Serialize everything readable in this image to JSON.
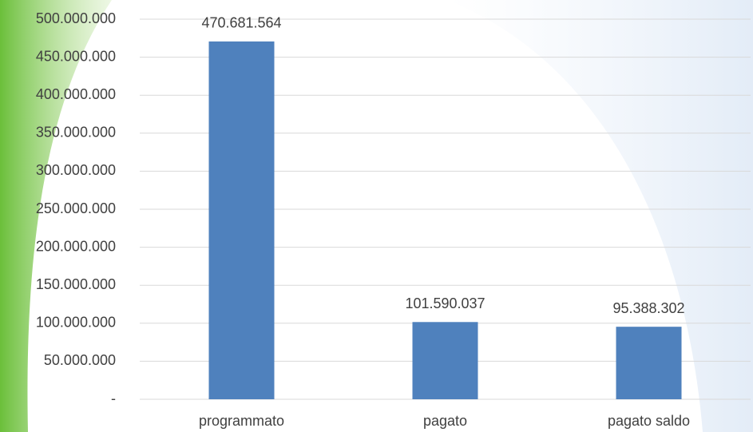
{
  "chart_data": {
    "type": "bar",
    "categories": [
      "programmato",
      "pagato",
      "pagato saldo"
    ],
    "values": [
      470681564,
      101590037,
      95388302
    ],
    "value_labels": [
      "470.681.564",
      "101.590.037",
      "95.388.302"
    ],
    "color": "#4f81bd",
    "ylim": [
      0,
      500000000
    ],
    "yticks": [
      {
        "value": 0,
        "label": "-"
      },
      {
        "value": 50000000,
        "label": "50.000.000"
      },
      {
        "value": 100000000,
        "label": "100.000.000"
      },
      {
        "value": 150000000,
        "label": "150.000.000"
      },
      {
        "value": 200000000,
        "label": "200.000.000"
      },
      {
        "value": 250000000,
        "label": "250.000.000"
      },
      {
        "value": 300000000,
        "label": "300.000.000"
      },
      {
        "value": 350000000,
        "label": "350.000.000"
      },
      {
        "value": 400000000,
        "label": "400.000.000"
      },
      {
        "value": 450000000,
        "label": "450.000.000"
      },
      {
        "value": 500000000,
        "label": "500.000.000"
      }
    ],
    "grid": true
  }
}
